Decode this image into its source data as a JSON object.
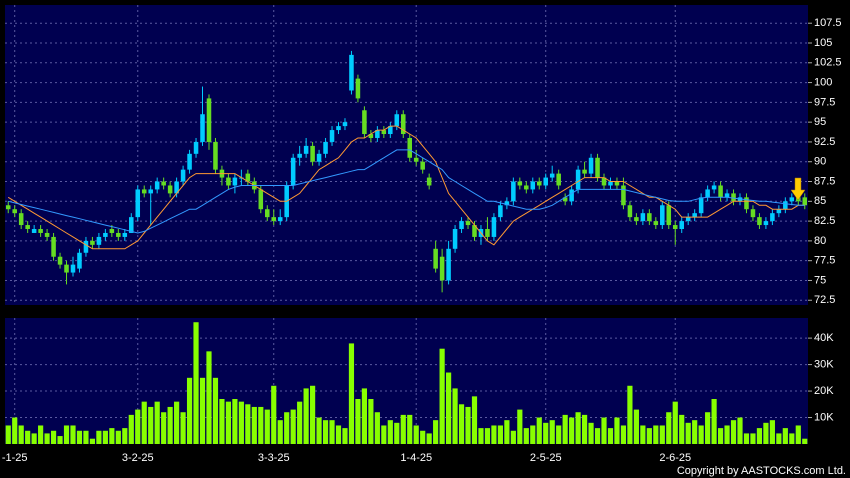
{
  "chart_data": [
    {
      "type": "candlestick",
      "up_color": "#00ccff",
      "down_color": "#66dd22",
      "ohlc": [
        [
          84.5,
          85,
          83.5,
          84
        ],
        [
          84,
          84.5,
          83,
          83.5
        ],
        [
          83.5,
          84,
          81.5,
          82
        ],
        [
          82,
          82.5,
          81,
          81.5
        ],
        [
          81,
          82,
          81,
          81.5
        ],
        [
          81.5,
          82,
          80.5,
          81
        ],
        [
          81,
          81.5,
          80,
          80.5
        ],
        [
          80.5,
          81,
          77.5,
          78
        ],
        [
          78,
          78.5,
          76.5,
          77
        ],
        [
          77,
          77.5,
          74.5,
          76
        ],
        [
          76,
          78,
          75.5,
          77
        ],
        [
          76.5,
          79,
          76,
          78.5
        ],
        [
          78.5,
          80.5,
          78,
          80
        ],
        [
          80,
          80.5,
          79,
          79.5
        ],
        [
          79.5,
          81,
          79,
          80.5
        ],
        [
          80.5,
          81.5,
          80,
          81
        ],
        [
          81.5,
          82,
          80.5,
          81
        ],
        [
          81,
          81.5,
          80,
          80.5
        ],
        [
          80.5,
          81.5,
          80,
          81
        ],
        [
          81,
          83.5,
          81,
          83
        ],
        [
          83,
          87,
          82.5,
          86.5
        ],
        [
          86.5,
          87,
          85.5,
          86
        ],
        [
          86,
          87,
          82,
          86.5
        ],
        [
          86.5,
          88,
          86,
          87.5
        ],
        [
          87.5,
          88,
          86.5,
          87
        ],
        [
          87,
          87.5,
          85.5,
          86
        ],
        [
          86,
          88,
          85.5,
          87.5
        ],
        [
          87.5,
          89.5,
          87,
          89
        ],
        [
          89,
          91.5,
          88.5,
          91
        ],
        [
          91,
          93,
          90.5,
          92.5
        ],
        [
          92.5,
          99.5,
          92,
          96
        ],
        [
          98,
          98.5,
          91.5,
          92.5
        ],
        [
          92.5,
          93,
          88.5,
          89
        ],
        [
          89,
          89.5,
          87,
          88
        ],
        [
          88,
          88.5,
          86.5,
          87
        ],
        [
          87,
          88.5,
          86,
          88
        ],
        [
          88,
          89,
          87,
          88
        ],
        [
          88.5,
          89,
          87,
          87.5
        ],
        [
          87.5,
          88,
          86,
          86.5
        ],
        [
          86.5,
          87,
          83.5,
          84
        ],
        [
          84,
          84.5,
          82.5,
          83
        ],
        [
          83,
          84,
          82,
          82.5
        ],
        [
          82.5,
          84,
          82,
          83
        ],
        [
          83,
          87.5,
          82.5,
          87
        ],
        [
          87,
          91,
          86.5,
          90.5
        ],
        [
          90.5,
          92,
          89.5,
          91
        ],
        [
          91,
          93,
          90.5,
          92
        ],
        [
          92,
          92.5,
          89.5,
          90
        ],
        [
          90,
          91.5,
          89.5,
          91
        ],
        [
          91,
          93,
          90.5,
          92.5
        ],
        [
          92.5,
          94.5,
          92,
          94
        ],
        [
          94,
          95,
          93.5,
          94.5
        ],
        [
          94.5,
          95.5,
          94,
          95
        ],
        [
          99,
          104,
          98.5,
          103.5
        ],
        [
          100.5,
          101,
          97.5,
          98
        ],
        [
          96.5,
          97,
          93,
          93.5
        ],
        [
          93.5,
          94,
          92.5,
          93
        ],
        [
          93,
          94.5,
          92.5,
          94
        ],
        [
          94,
          94.5,
          93,
          93.5
        ],
        [
          93.5,
          95,
          93,
          94.5
        ],
        [
          94.5,
          96.5,
          94,
          96
        ],
        [
          96,
          96.5,
          93,
          93.5
        ],
        [
          93,
          93.5,
          90,
          90.5
        ],
        [
          90.5,
          91.5,
          89.5,
          90
        ],
        [
          90,
          90.5,
          88.5,
          89
        ],
        [
          88,
          88.5,
          86.5,
          87
        ],
        [
          79,
          80,
          76,
          76.5
        ],
        [
          78,
          79,
          73.5,
          75
        ],
        [
          75,
          80,
          74.5,
          79
        ],
        [
          79,
          82,
          78.5,
          81.5
        ],
        [
          81.5,
          83,
          81,
          82.5
        ],
        [
          82.5,
          83,
          81.5,
          82
        ],
        [
          82,
          82.5,
          80,
          80.5
        ],
        [
          80.5,
          82,
          79.5,
          81.5
        ],
        [
          81.5,
          83,
          80,
          80.5
        ],
        [
          80.5,
          83.5,
          80,
          83
        ],
        [
          83,
          85,
          82.5,
          84.5
        ],
        [
          84.5,
          85.5,
          84,
          85
        ],
        [
          85,
          88,
          84.5,
          87.5
        ],
        [
          87.5,
          88,
          86.5,
          87
        ],
        [
          87,
          87.5,
          86,
          86.5
        ],
        [
          86.5,
          88,
          86,
          87.5
        ],
        [
          87.5,
          88,
          86.5,
          87
        ],
        [
          87,
          88.5,
          86.5,
          88
        ],
        [
          88,
          89.5,
          87.5,
          88.5
        ],
        [
          88.5,
          89,
          86.5,
          87
        ],
        [
          85.5,
          86,
          84.5,
          85
        ],
        [
          85,
          87,
          84.5,
          86.5
        ],
        [
          86.5,
          89.5,
          86,
          89
        ],
        [
          89,
          90,
          88,
          88.5
        ],
        [
          88.5,
          91,
          88,
          90.5
        ],
        [
          90.5,
          91,
          87.5,
          88
        ],
        [
          88,
          88.5,
          86.5,
          87
        ],
        [
          87,
          88,
          86.5,
          87.5
        ],
        [
          87.5,
          88,
          86.5,
          87
        ],
        [
          87,
          88,
          84,
          84.5
        ],
        [
          84.5,
          85,
          82.5,
          83
        ],
        [
          83,
          83.5,
          82,
          82.5
        ],
        [
          82.5,
          84,
          82,
          83.5
        ],
        [
          83.5,
          84,
          82,
          82.5
        ],
        [
          82.5,
          83,
          81.5,
          82
        ],
        [
          82,
          85,
          81.5,
          84.5
        ],
        [
          84.5,
          85,
          81.5,
          82
        ],
        [
          82,
          82.5,
          79.5,
          81.5
        ],
        [
          81.5,
          83,
          81,
          82.5
        ],
        [
          82.5,
          83.5,
          82,
          83
        ],
        [
          83,
          84,
          82.5,
          83.5
        ],
        [
          83.5,
          86,
          83,
          85.5
        ],
        [
          85.5,
          87,
          85,
          86.5
        ],
        [
          86.5,
          87.5,
          86,
          87
        ],
        [
          87,
          87.5,
          85,
          85.5
        ],
        [
          85.5,
          86.5,
          85,
          86
        ],
        [
          86,
          86.5,
          84.5,
          85
        ],
        [
          85,
          86,
          84.5,
          85.5
        ],
        [
          85.5,
          86,
          83.5,
          84
        ],
        [
          84,
          84.5,
          82.5,
          83
        ],
        [
          83,
          83.5,
          81.5,
          82
        ],
        [
          82,
          83,
          81.5,
          82.5
        ],
        [
          82.5,
          84,
          82,
          83.5
        ],
        [
          83.5,
          84.5,
          83,
          84
        ],
        [
          84,
          85.5,
          83.5,
          85
        ],
        [
          85,
          86,
          84.5,
          85.5
        ],
        [
          85.5,
          86,
          84.5,
          85
        ],
        [
          85.5,
          86,
          84,
          84.5
        ]
      ],
      "series": [
        {
          "color": "#ff9933",
          "values": [
            85.5,
            85,
            84.5,
            84,
            83.5,
            83,
            82.5,
            82,
            81.5,
            81,
            80.5,
            80,
            79.5,
            79,
            79,
            79,
            79,
            79,
            79,
            79.5,
            80,
            81,
            82,
            83,
            84,
            85,
            86,
            87,
            88,
            88.5,
            88.5,
            88.5,
            88.5,
            88.5,
            88.5,
            88.5,
            88,
            87.5,
            87,
            86.5,
            86,
            85.5,
            85,
            85,
            85.5,
            86,
            87,
            88,
            89,
            89.5,
            90,
            90.5,
            91.5,
            92.5,
            93,
            93,
            93.5,
            94,
            94,
            94.5,
            94.5,
            94,
            93.5,
            93,
            92,
            91,
            90,
            88,
            86,
            85,
            84,
            83,
            82,
            81,
            80,
            79.5,
            80.5,
            81.5,
            82.5,
            83,
            83.5,
            84,
            84.5,
            85,
            85.5,
            86,
            86.5,
            87,
            87.5,
            88,
            88,
            88,
            88,
            87.5,
            87.5,
            87.5,
            87,
            86.5,
            86,
            85.5,
            85.5,
            85,
            84.5,
            84,
            83,
            83,
            83,
            83,
            83,
            83.5,
            84,
            84.5,
            85,
            85,
            85,
            85,
            84.5,
            84.5,
            84,
            84,
            84,
            84,
            84.5,
            84.5
          ]
        },
        {
          "color": "#3399ff",
          "values": [
            85,
            84.8,
            84.6,
            84.4,
            84.2,
            84,
            83.8,
            83.6,
            83.4,
            83.2,
            83,
            82.8,
            82.6,
            82.4,
            82.2,
            82,
            81.8,
            81.6,
            81.4,
            81.2,
            81,
            81.2,
            81.6,
            82,
            82.4,
            82.8,
            83.2,
            83.6,
            84,
            84,
            84.5,
            85,
            85.5,
            86,
            86.5,
            86.8,
            87,
            87,
            87,
            87,
            87,
            87,
            87,
            87,
            87,
            87.2,
            87.4,
            87.6,
            87.8,
            88,
            88.2,
            88.4,
            88.6,
            88.8,
            89,
            89,
            89.5,
            90,
            90.5,
            91,
            91.5,
            91.5,
            91.5,
            91,
            90.5,
            90,
            89.5,
            89,
            88,
            87.5,
            87,
            86.5,
            86,
            85.5,
            85,
            85,
            84.8,
            84.6,
            84.4,
            84.2,
            84,
            84,
            84,
            84.2,
            84.5,
            85,
            85.5,
            86,
            86.5,
            86.5,
            86.5,
            86.5,
            86.5,
            86.5,
            86.5,
            86.5,
            86.3,
            86.1,
            85.9,
            85.7,
            85.5,
            85.3,
            85.1,
            85,
            85,
            85,
            85.2,
            85.4,
            85.5,
            85.5,
            85.5,
            85.5,
            85.4,
            85.3,
            85.2,
            85.1,
            85,
            85,
            84.9,
            84.8,
            84.7,
            84.6,
            84.5,
            84.5
          ]
        }
      ],
      "ylim": [
        71.9,
        109.8
      ],
      "yticks": [
        72.5,
        75,
        77.5,
        80,
        82.5,
        85,
        87.5,
        90,
        92.5,
        95,
        97.5,
        100,
        102.5,
        105,
        107.5
      ],
      "grid": true
    },
    {
      "type": "bar",
      "color": "#88ff00",
      "categories": [
        null,
        "-1-25",
        null,
        null,
        null,
        null,
        null,
        null,
        null,
        null,
        null,
        null,
        null,
        null,
        null,
        null,
        null,
        null,
        null,
        null,
        "3-2-25",
        null,
        null,
        null,
        null,
        null,
        null,
        null,
        null,
        null,
        null,
        null,
        null,
        null,
        null,
        null,
        null,
        null,
        null,
        null,
        null,
        "3-3-25",
        null,
        null,
        null,
        null,
        null,
        null,
        null,
        null,
        null,
        null,
        null,
        null,
        null,
        null,
        null,
        null,
        null,
        null,
        null,
        null,
        null,
        "1-4-25",
        null,
        null,
        null,
        null,
        null,
        null,
        null,
        null,
        null,
        null,
        null,
        null,
        null,
        null,
        null,
        null,
        null,
        null,
        null,
        "2-5-25",
        null,
        null,
        null,
        null,
        null,
        null,
        null,
        null,
        null,
        null,
        null,
        null,
        null,
        null,
        null,
        null,
        null,
        null,
        null,
        "2-6-25",
        null,
        null,
        null,
        null,
        null,
        null,
        null,
        null,
        null,
        null,
        null,
        null,
        null,
        null,
        null,
        null,
        null,
        null,
        null,
        null
      ],
      "values": [
        7000,
        10000,
        7000,
        5000,
        4000,
        7000,
        4000,
        5000,
        3000,
        7000,
        7000,
        5000,
        5000,
        2000,
        5000,
        5000,
        6000,
        5000,
        6000,
        11000,
        13000,
        16000,
        14000,
        16000,
        12000,
        14000,
        16000,
        12000,
        25000,
        46000,
        25000,
        35000,
        25000,
        17000,
        16000,
        17000,
        16000,
        15000,
        14000,
        14000,
        13000,
        22000,
        9000,
        12000,
        13000,
        16000,
        21000,
        22000,
        10000,
        9000,
        9000,
        7000,
        6000,
        38000,
        17000,
        21000,
        17000,
        12000,
        7000,
        9000,
        8000,
        11000,
        11000,
        7000,
        5000,
        4000,
        9000,
        36000,
        27000,
        21000,
        15000,
        14000,
        18000,
        6000,
        6000,
        7000,
        7000,
        9000,
        5000,
        13000,
        6000,
        7000,
        10000,
        8000,
        9000,
        7000,
        11000,
        10000,
        12000,
        11000,
        8000,
        6000,
        10000,
        6000,
        10000,
        7000,
        22000,
        13000,
        7000,
        6000,
        7000,
        7000,
        12000,
        16000,
        11000,
        8000,
        9000,
        7000,
        12000,
        17000,
        6000,
        7000,
        9000,
        10000,
        4000,
        4000,
        6000,
        8000,
        9000,
        4000,
        6000,
        4000,
        7000,
        2000
      ],
      "ylim": [
        0,
        47600
      ],
      "yticks": [
        {
          "value": 10000,
          "label": "10K"
        },
        {
          "value": 20000,
          "label": "20K"
        },
        {
          "value": 30000,
          "label": "30K"
        },
        {
          "value": 40000,
          "label": "40K"
        }
      ],
      "grid": true
    }
  ],
  "footer": "Copyright by AASTOCKS.com Ltd."
}
